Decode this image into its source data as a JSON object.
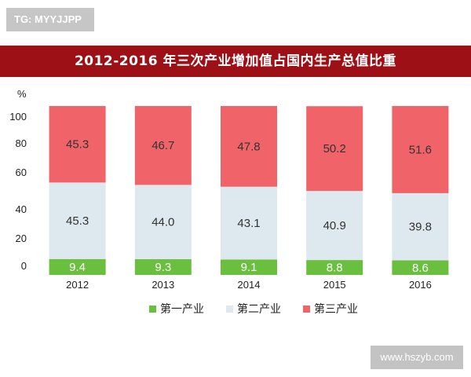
{
  "watermark_top": "TG: MYYJJPP",
  "watermark_bottom": "www.hszyb.com",
  "colors": {
    "primary": "#6bbf3f",
    "secondary": "#dde8ef",
    "tertiary": "#f06469",
    "banner": "#9d1016"
  },
  "chart_data": {
    "type": "bar",
    "stacked": true,
    "title": "2012-2016 年三次产业增加值占国内生产总值比重",
    "ylabel": "%",
    "ylim": [
      0,
      100
    ],
    "yticks": [
      0,
      20,
      40,
      60,
      80,
      100
    ],
    "categories": [
      "2012",
      "2013",
      "2014",
      "2015",
      "2016"
    ],
    "series": [
      {
        "name": "第一产业",
        "values": [
          9.4,
          9.3,
          9.1,
          8.8,
          8.6
        ]
      },
      {
        "name": "第二产业",
        "values": [
          45.3,
          44.0,
          43.1,
          40.9,
          39.8
        ]
      },
      {
        "name": "第三产业",
        "values": [
          45.3,
          46.7,
          47.8,
          50.2,
          51.6
        ]
      }
    ],
    "labels": [
      [
        "9.4",
        "9.3",
        "9.1",
        "8.8",
        "8.6"
      ],
      [
        "45.3",
        "44.0",
        "43.1",
        "40.9",
        "39.8"
      ],
      [
        "45.3",
        "46.7",
        "47.8",
        "50.2",
        "51.6"
      ]
    ],
    "legend_position": "bottom",
    "grid": false
  }
}
